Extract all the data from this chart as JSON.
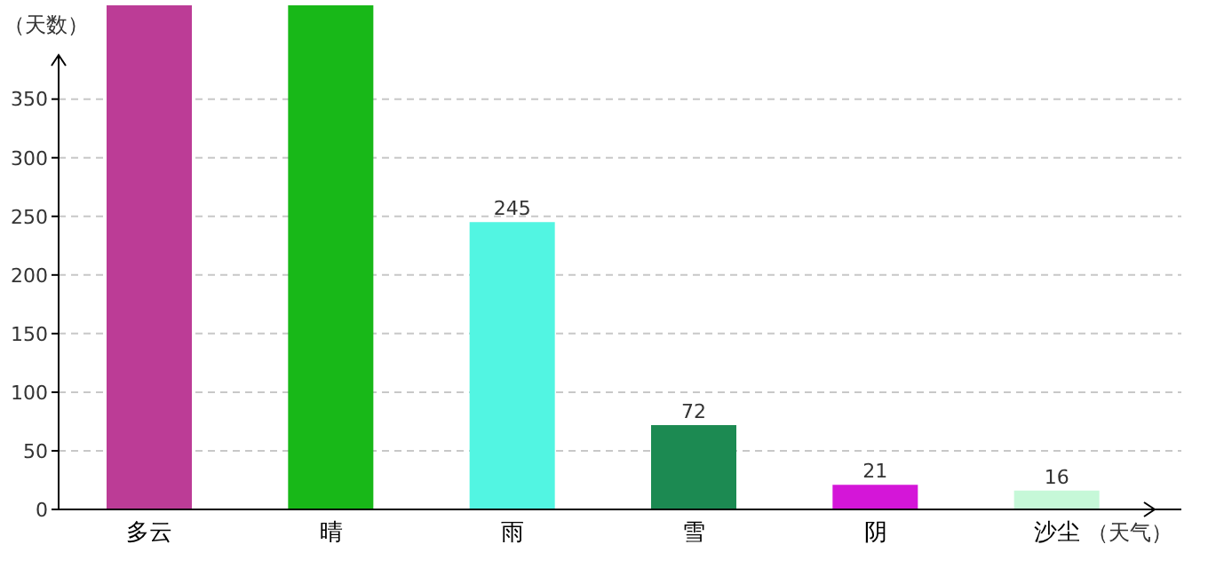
{
  "chart_data": {
    "type": "bar",
    "ylabel": "（天数）",
    "xlabel": "（天气）",
    "categories": [
      "多云",
      "晴",
      "雨",
      "雪",
      "阴",
      "沙尘"
    ],
    "values": [
      430,
      430,
      245,
      72,
      21,
      16
    ],
    "colors": [
      "#bc3c96",
      "#18b818",
      "#52f5e2",
      "#1c8a52",
      "#d416d8",
      "#c6f8d8"
    ],
    "value_labels": [
      null,
      null,
      "245",
      "72",
      "21",
      "16"
    ],
    "ylim": [
      0,
      430
    ],
    "yticks": [
      0,
      50,
      100,
      150,
      200,
      250,
      300,
      350
    ],
    "grid": "y",
    "legend": false
  }
}
